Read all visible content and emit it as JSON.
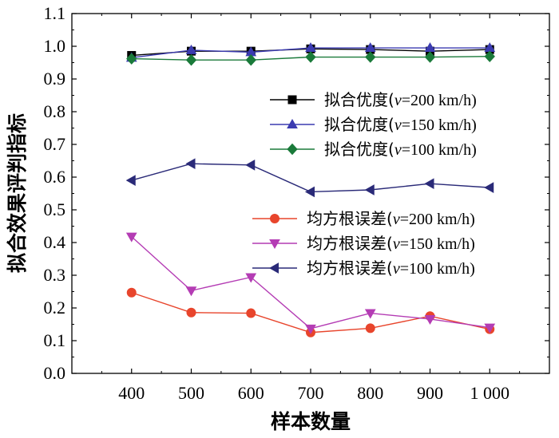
{
  "chart_data": {
    "type": "line",
    "xlabel": "样本数量",
    "ylabel": "拟合效果评判指标",
    "x": [
      400,
      500,
      600,
      700,
      800,
      900,
      1000
    ],
    "x_tick_labels": [
      "400",
      "500",
      "600",
      "700",
      "800",
      "900",
      "1 000"
    ],
    "xlim": [
      300,
      1100
    ],
    "ylim": [
      0.0,
      1.1
    ],
    "y_ticks": [
      0.0,
      0.1,
      0.2,
      0.3,
      0.4,
      0.5,
      0.6,
      0.7,
      0.8,
      0.9,
      1.0,
      1.1
    ],
    "y_tick_labels": [
      "0.0",
      "0.1",
      "0.2",
      "0.3",
      "0.4",
      "0.5",
      "0.6",
      "0.7",
      "0.8",
      "0.9",
      "1.0",
      "1.1"
    ],
    "grid": false,
    "legend_placement": "right",
    "series": [
      {
        "name": "拟合优度(v=200 km/h)",
        "label_pre": "拟合优度(",
        "label_var": "v",
        "label_post": "=200 km/h)",
        "group": 1,
        "color": "#000000",
        "marker": "square",
        "values": [
          0.972,
          0.985,
          0.985,
          0.992,
          0.99,
          0.985,
          0.99
        ]
      },
      {
        "name": "拟合优度(v=150 km/h)",
        "label_pre": "拟合优度(",
        "label_var": "v",
        "label_post": "=150 km/h)",
        "group": 1,
        "color": "#3b3bb0",
        "marker": "triangle-up",
        "values": [
          0.965,
          0.988,
          0.982,
          0.995,
          0.995,
          0.995,
          0.995
        ]
      },
      {
        "name": "拟合优度(v=100 km/h)",
        "label_pre": "拟合优度(",
        "label_var": "v",
        "label_post": "=100 km/h)",
        "group": 1,
        "color": "#1a7a3a",
        "marker": "diamond",
        "values": [
          0.962,
          0.958,
          0.958,
          0.967,
          0.967,
          0.967,
          0.969
        ]
      },
      {
        "name": "均方根误差(v=200 km/h)",
        "label_pre": "均方根误差(",
        "label_var": "v",
        "label_post": "=200 km/h)",
        "group": 2,
        "color": "#e8452c",
        "marker": "circle",
        "values": [
          0.247,
          0.186,
          0.184,
          0.125,
          0.138,
          0.175,
          0.135
        ]
      },
      {
        "name": "均方根误差(v=150 km/h)",
        "label_pre": "均方根误差(",
        "label_var": "v",
        "label_post": "=150 km/h)",
        "group": 2,
        "color": "#b43cb4",
        "marker": "triangle-down",
        "values": [
          0.418,
          0.253,
          0.294,
          0.137,
          0.184,
          0.166,
          0.14
        ]
      },
      {
        "name": "均方根误差(v=100 km/h)",
        "label_pre": "均方根误差(",
        "label_var": "v",
        "label_post": "=100 km/h)",
        "group": 2,
        "color": "#2a2a78",
        "marker": "triangle-left",
        "values": [
          0.59,
          0.641,
          0.637,
          0.555,
          0.561,
          0.58,
          0.568
        ]
      }
    ]
  }
}
